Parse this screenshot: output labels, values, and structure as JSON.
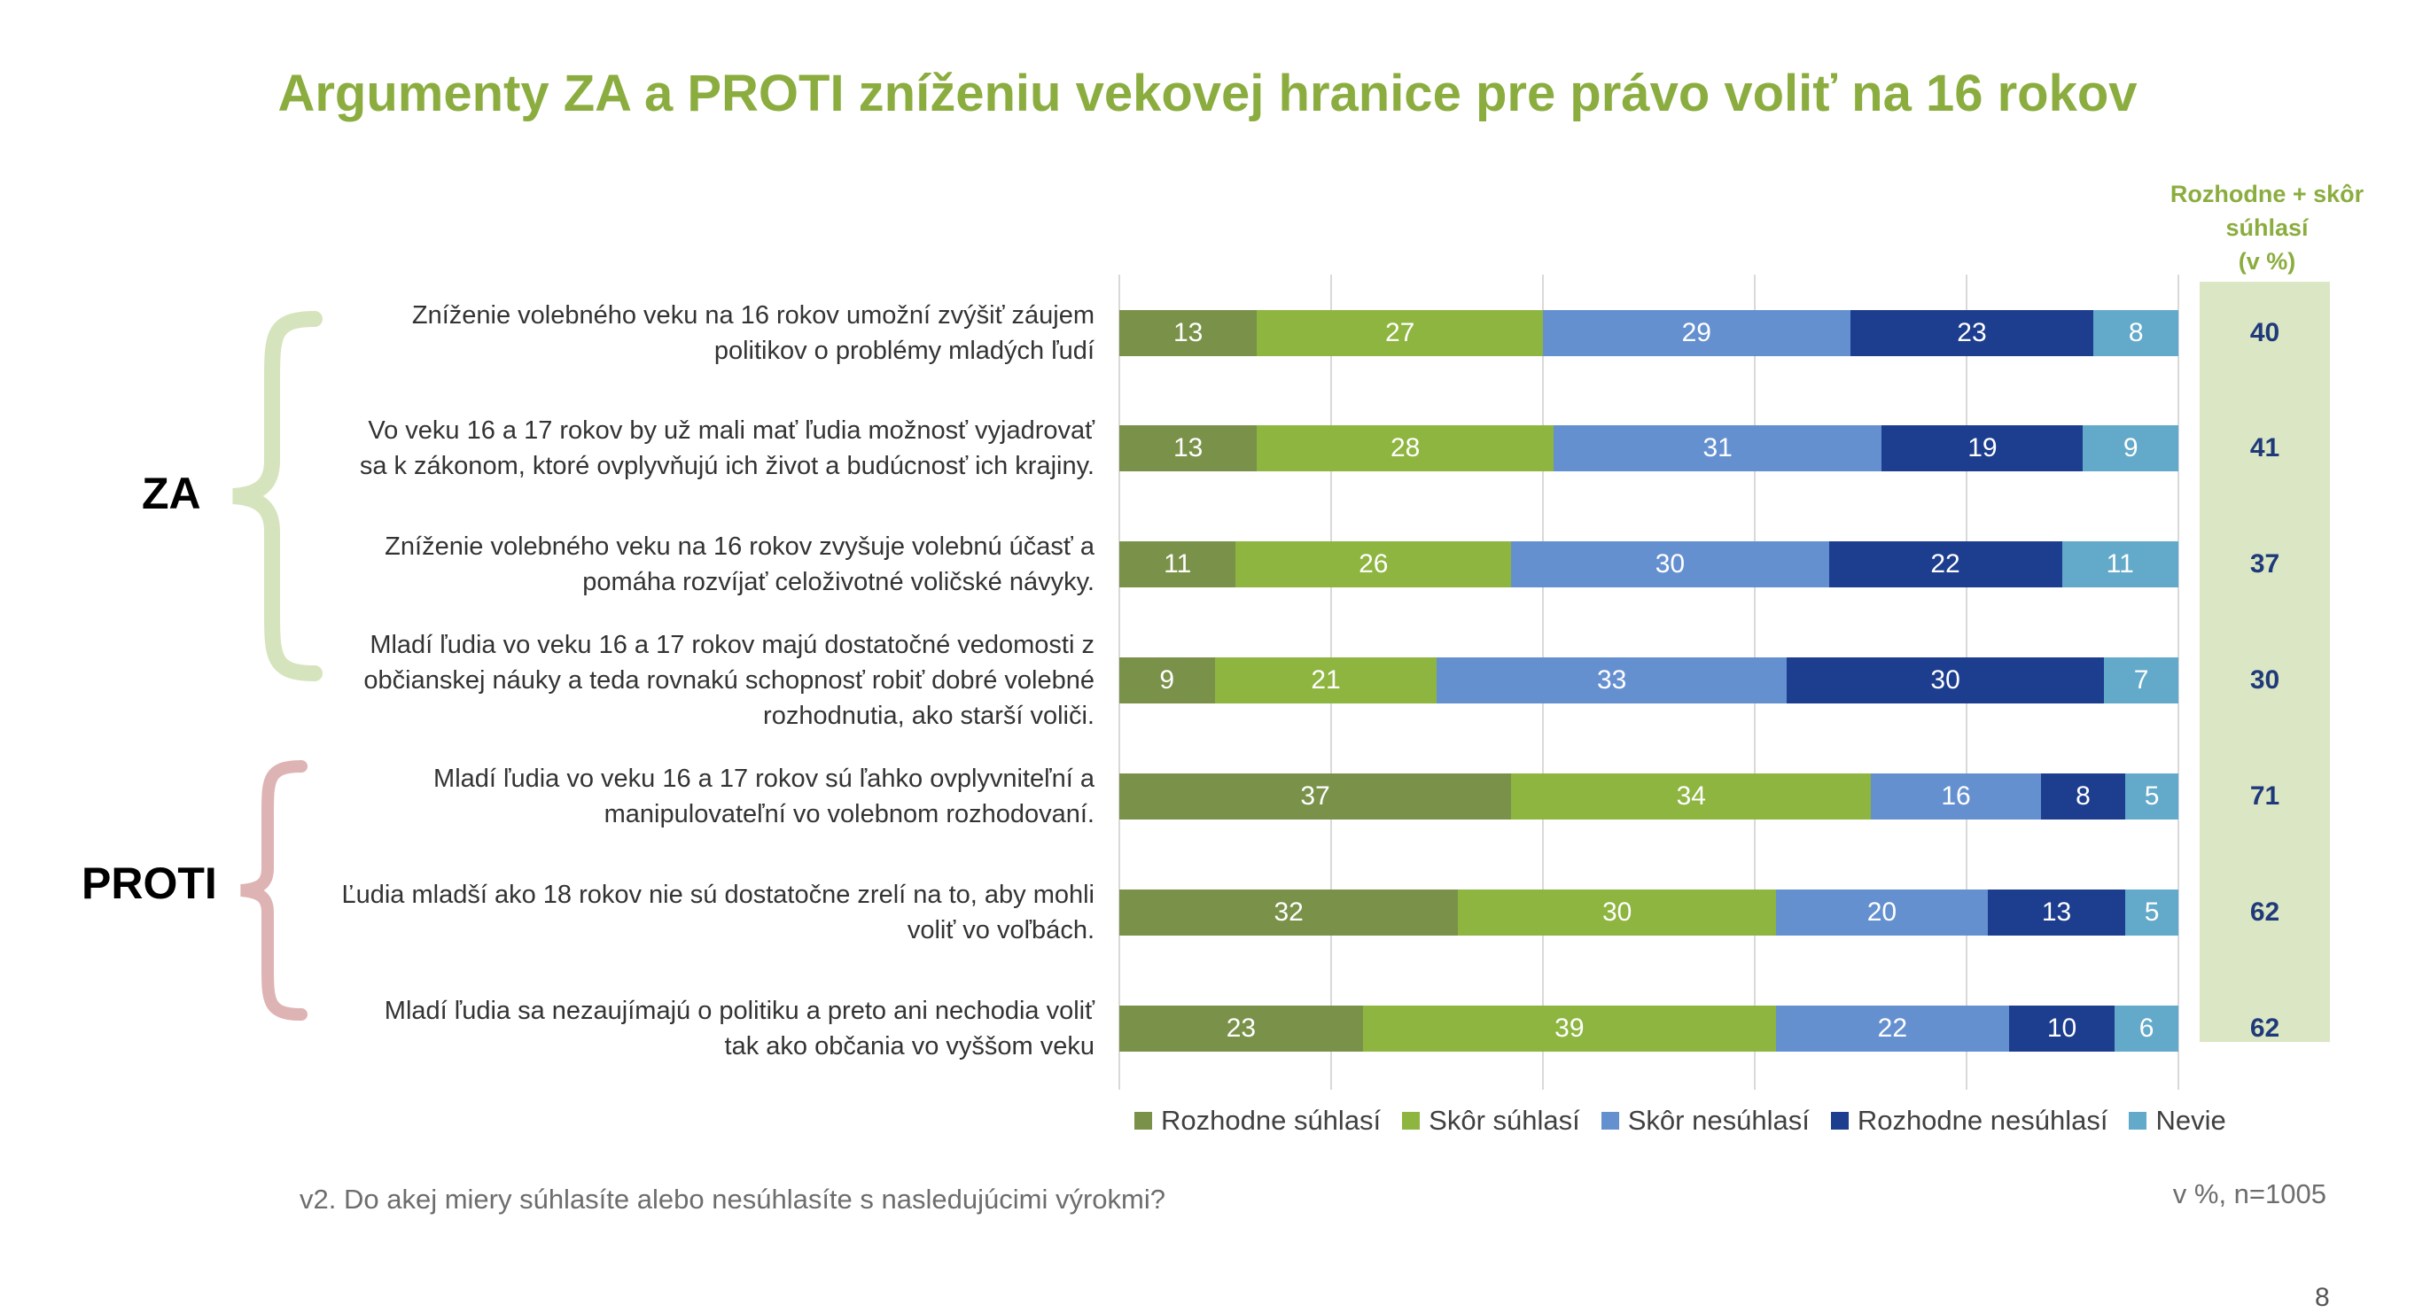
{
  "title": "Argumenty ZA a PROTI zníženiu vekovej hranice pre právo voliť na 16 rokov",
  "summary_header": [
    "Rozhodne + skôr",
    "súhlasí",
    "(v %)"
  ],
  "groups": [
    {
      "label": "ZA",
      "color": "#d5e4bd"
    },
    {
      "label": "PROTI",
      "color": "#deb3b3"
    }
  ],
  "chart_data": {
    "type": "bar",
    "orientation": "horizontal",
    "stacked": true,
    "title": "Argumenty ZA a PROTI zníženiu vekovej hranice pre právo voliť na 16 rokov",
    "xlim": [
      0,
      100
    ],
    "grid": true,
    "legend_position": "bottom",
    "categories": [
      [
        "Zníženie volebného veku na 16 rokov umožní zvýšiť záujem",
        "politikov o problémy mladých ľudí"
      ],
      [
        "Vo veku 16 a 17 rokov by už mali mať ľudia možnosť vyjadrovať",
        "sa k zákonom, ktoré ovplyvňujú ich život a budúcnosť ich krajiny."
      ],
      [
        "Zníženie volebného veku na 16 rokov zvyšuje volebnú účasť a",
        "pomáha rozvíjať celoživotné voličské návyky."
      ],
      [
        "Mladí ľudia vo veku 16 a 17 rokov majú dostatočné vedomosti z",
        "občianskej náuky a teda rovnakú schopnosť robiť dobré volebné",
        "rozhodnutia, ako starší voliči."
      ],
      [
        "Mladí ľudia vo veku 16 a 17 rokov sú ľahko ovplyvniteľní a",
        "manipulovateľní vo volebnom rozhodovaní."
      ],
      [
        "Ľudia mladší ako 18 rokov nie sú dostatočne zrelí na to, aby mohli",
        "voliť vo voľbách."
      ],
      [
        "Mladí ľudia sa nezaujímajú o politiku a preto ani nechodia voliť",
        "tak ako občania vo vyššom veku"
      ]
    ],
    "series": [
      {
        "name": "Rozhodne súhlasí",
        "color": "#7a9149",
        "values": [
          13,
          13,
          11,
          9,
          37,
          32,
          23
        ]
      },
      {
        "name": "Skôr súhlasí",
        "color": "#8db53f",
        "values": [
          27,
          28,
          26,
          21,
          34,
          30,
          39
        ]
      },
      {
        "name": "Skôr nesúhlasí",
        "color": "#6590d0",
        "values": [
          29,
          31,
          30,
          33,
          16,
          20,
          22
        ]
      },
      {
        "name": "Rozhodne nesúhlasí",
        "color": "#1d3d8f",
        "values": [
          23,
          19,
          22,
          30,
          8,
          13,
          10
        ]
      },
      {
        "name": "Nevie",
        "color": "#63a9c9",
        "values": [
          8,
          9,
          11,
          7,
          5,
          5,
          6
        ]
      }
    ],
    "summary_values": [
      40,
      41,
      37,
      30,
      71,
      62,
      62
    ]
  },
  "footnote": "v2. Do akej miery súhlasíte alebo nesúhlasíte s nasledujúcimi výrokmi?",
  "sample": "v %, n=1005",
  "page_number": "8"
}
